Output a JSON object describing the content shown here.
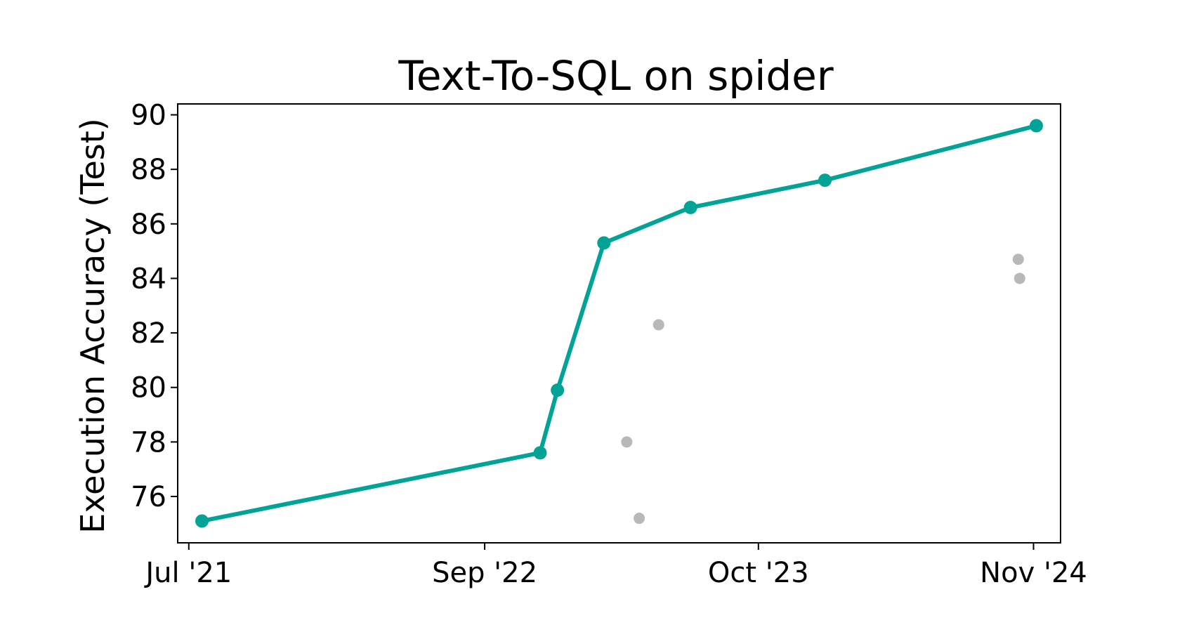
{
  "chart_data": {
    "type": "line",
    "title": "Text-To-SQL on spider",
    "xlabel": "",
    "ylabel": "Execution Accuracy (Test)",
    "x_axis": {
      "type": "date",
      "range": [
        "2021-06-15",
        "2024-12-10"
      ],
      "ticks": [
        {
          "date": "2021-07-01",
          "label": "Jul '21"
        },
        {
          "date": "2022-09-01",
          "label": "Sep '22"
        },
        {
          "date": "2023-10-01",
          "label": "Oct '23"
        },
        {
          "date": "2024-11-01",
          "label": "Nov '24"
        }
      ]
    },
    "y_axis": {
      "range": [
        74.3,
        90.4
      ],
      "ticks": [
        76,
        78,
        80,
        82,
        84,
        86,
        88,
        90
      ]
    },
    "grid": false,
    "colors": {
      "sota": "#00a396",
      "other": "#b8b8b8"
    },
    "series": [
      {
        "kind": "line",
        "points": [
          {
            "x": "2021-07-20",
            "y": 75.1
          },
          {
            "x": "2022-11-20",
            "y": 77.6
          },
          {
            "x": "2022-12-15",
            "y": 79.9
          },
          {
            "x": "2023-02-20",
            "y": 85.3
          },
          {
            "x": "2023-06-25",
            "y": 86.6
          },
          {
            "x": "2024-01-05",
            "y": 87.6
          },
          {
            "x": "2024-11-05",
            "y": 89.6
          }
        ]
      },
      {
        "kind": "scatter",
        "points": [
          {
            "x": "2023-03-25",
            "y": 78.0
          },
          {
            "x": "2023-04-12",
            "y": 75.2
          },
          {
            "x": "2023-05-10",
            "y": 82.3
          },
          {
            "x": "2024-10-10",
            "y": 84.7
          },
          {
            "x": "2024-10-12",
            "y": 84.0
          }
        ]
      }
    ]
  }
}
